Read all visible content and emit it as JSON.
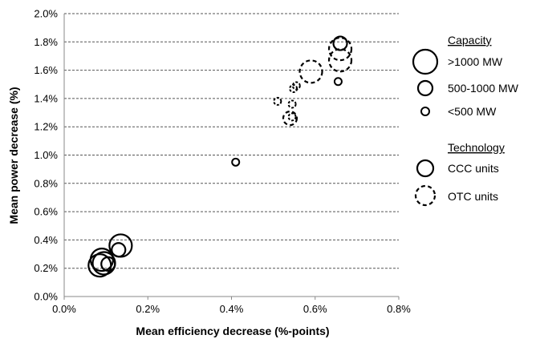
{
  "chart_data": {
    "type": "scatter",
    "title": "",
    "xlabel": "Mean efficiency decrease  (%-points)",
    "ylabel": "Mean power decrease (%)",
    "xlim": [
      0,
      0.8
    ],
    "ylim": [
      0,
      2.0
    ],
    "x_ticks": [
      "0.0%",
      "0.2%",
      "0.4%",
      "0.6%",
      "0.8%"
    ],
    "y_ticks": [
      "0.0%",
      "0.2%",
      "0.4%",
      "0.6%",
      "0.8%",
      "1.0%",
      "1.2%",
      "1.4%",
      "1.6%",
      "1.8%",
      "2.0%"
    ],
    "grid": "horizontal dashed",
    "legend_position": "right",
    "legend": {
      "capacity_title": "Capacity",
      "capacity_items": [
        {
          "label": ">1000 MW",
          "size": "large"
        },
        {
          "label": "500-1000  MW",
          "size": "medium"
        },
        {
          "label": "<500 MW",
          "size": "small"
        }
      ],
      "technology_title": "Technology",
      "technology_items": [
        {
          "label": "CCC units",
          "style": "solid"
        },
        {
          "label": "OTC units",
          "style": "dashed"
        }
      ]
    },
    "points": [
      {
        "x": 0.085,
        "y": 0.22,
        "size": "large",
        "technology": "CCC"
      },
      {
        "x": 0.09,
        "y": 0.26,
        "size": "large",
        "technology": "CCC"
      },
      {
        "x": 0.095,
        "y": 0.235,
        "size": "large",
        "technology": "CCC"
      },
      {
        "x": 0.105,
        "y": 0.23,
        "size": "medium",
        "technology": "CCC"
      },
      {
        "x": 0.13,
        "y": 0.33,
        "size": "medium",
        "technology": "CCC"
      },
      {
        "x": 0.135,
        "y": 0.36,
        "size": "large",
        "technology": "CCC"
      },
      {
        "x": 0.41,
        "y": 0.95,
        "size": "small",
        "technology": "CCC"
      },
      {
        "x": 0.51,
        "y": 1.38,
        "size": "small",
        "technology": "OTC"
      },
      {
        "x": 0.54,
        "y": 1.26,
        "size": "medium",
        "technology": "OTC"
      },
      {
        "x": 0.545,
        "y": 1.36,
        "size": "small",
        "technology": "OTC"
      },
      {
        "x": 0.545,
        "y": 1.27,
        "size": "small",
        "technology": "OTC"
      },
      {
        "x": 0.548,
        "y": 1.47,
        "size": "small",
        "technology": "OTC"
      },
      {
        "x": 0.555,
        "y": 1.49,
        "size": "small",
        "technology": "OTC"
      },
      {
        "x": 0.59,
        "y": 1.59,
        "size": "large",
        "technology": "OTC"
      },
      {
        "x": 0.655,
        "y": 1.52,
        "size": "small",
        "technology": "CCC"
      },
      {
        "x": 0.66,
        "y": 1.67,
        "size": "large",
        "technology": "OTC"
      },
      {
        "x": 0.66,
        "y": 1.75,
        "size": "large",
        "technology": "OTC"
      },
      {
        "x": 0.66,
        "y": 1.79,
        "size": "medium",
        "technology": "CCC"
      }
    ]
  }
}
